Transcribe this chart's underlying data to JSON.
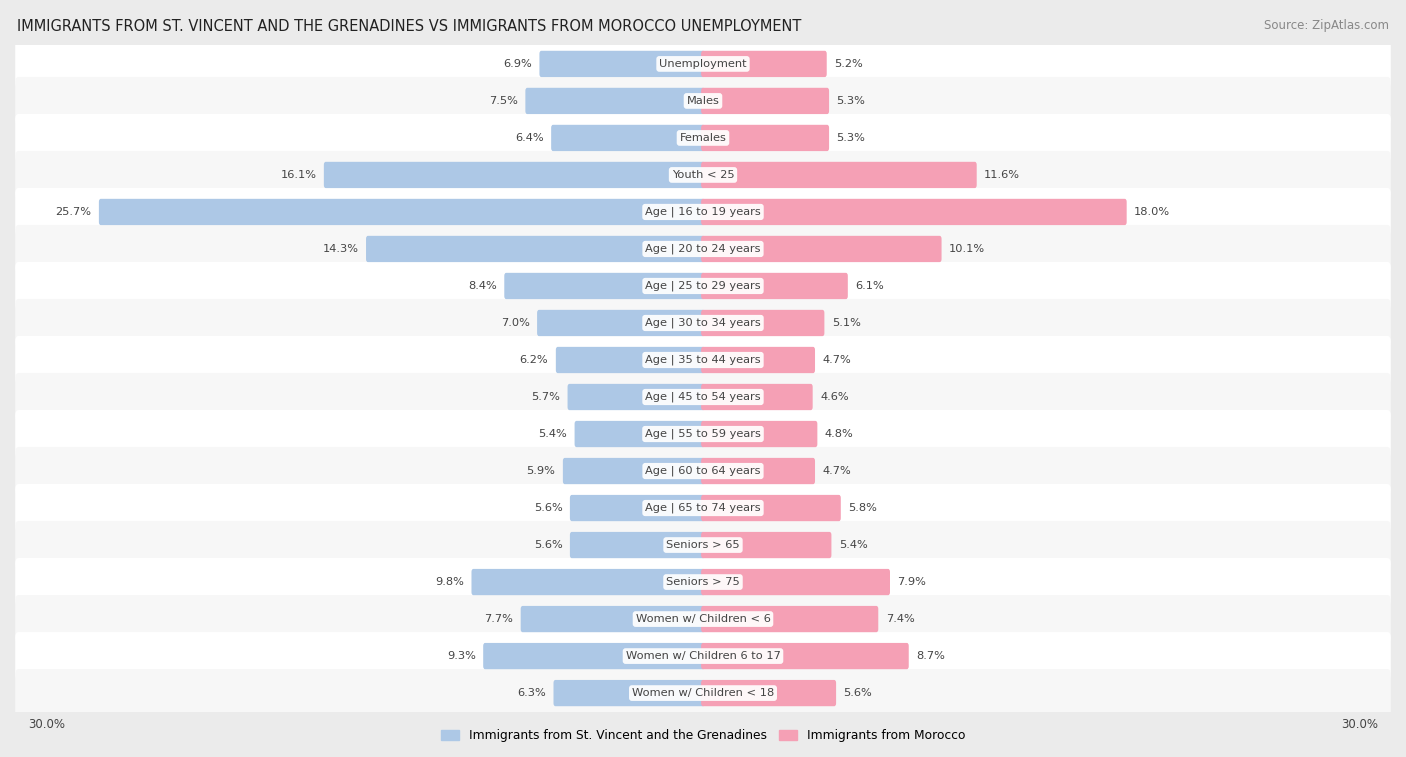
{
  "title": "IMMIGRANTS FROM ST. VINCENT AND THE GRENADINES VS IMMIGRANTS FROM MOROCCO UNEMPLOYMENT",
  "source": "Source: ZipAtlas.com",
  "categories": [
    "Unemployment",
    "Males",
    "Females",
    "Youth < 25",
    "Age | 16 to 19 years",
    "Age | 20 to 24 years",
    "Age | 25 to 29 years",
    "Age | 30 to 34 years",
    "Age | 35 to 44 years",
    "Age | 45 to 54 years",
    "Age | 55 to 59 years",
    "Age | 60 to 64 years",
    "Age | 65 to 74 years",
    "Seniors > 65",
    "Seniors > 75",
    "Women w/ Children < 6",
    "Women w/ Children 6 to 17",
    "Women w/ Children < 18"
  ],
  "left_values": [
    6.9,
    7.5,
    6.4,
    16.1,
    25.7,
    14.3,
    8.4,
    7.0,
    6.2,
    5.7,
    5.4,
    5.9,
    5.6,
    5.6,
    9.8,
    7.7,
    9.3,
    6.3
  ],
  "right_values": [
    5.2,
    5.3,
    5.3,
    11.6,
    18.0,
    10.1,
    6.1,
    5.1,
    4.7,
    4.6,
    4.8,
    4.7,
    5.8,
    5.4,
    7.9,
    7.4,
    8.7,
    5.6
  ],
  "left_color": "#adc8e6",
  "right_color": "#f5a0b5",
  "left_label": "Immigrants from St. Vincent and the Grenadines",
  "right_label": "Immigrants from Morocco",
  "max_val": 30.0,
  "bg_color": "#ebebeb",
  "row_bg_odd": "#f7f7f7",
  "row_bg_even": "#ffffff",
  "label_color": "#444444",
  "value_color": "#444444",
  "title_color": "#222222",
  "axis_label": "30.0%"
}
